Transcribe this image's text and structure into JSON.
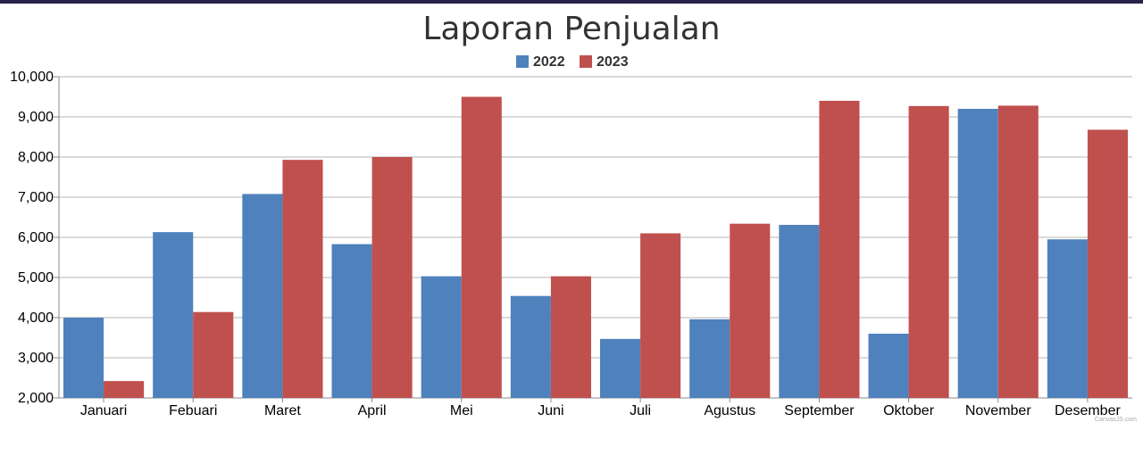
{
  "chart_data": {
    "type": "bar",
    "title": "Laporan Penjualan",
    "categories": [
      "Januari",
      "Febuari",
      "Maret",
      "April",
      "Mei",
      "Juni",
      "Juli",
      "Agustus",
      "September",
      "Oktober",
      "November",
      "Desember"
    ],
    "series": [
      {
        "name": "2022",
        "color": "#4f81bc",
        "values": [
          4000,
          6130,
          7080,
          5830,
          5030,
          4540,
          3470,
          3960,
          6310,
          3600,
          9200,
          5950
        ]
      },
      {
        "name": "2023",
        "color": "#c0504e",
        "values": [
          2420,
          4140,
          7930,
          8000,
          9500,
          5030,
          6100,
          6340,
          9400,
          9270,
          9280,
          8680
        ]
      }
    ],
    "ylim": [
      2000,
      10000
    ],
    "yticks": [
      2000,
      3000,
      4000,
      5000,
      6000,
      7000,
      8000,
      9000,
      10000
    ],
    "ytick_labels": [
      "2,000",
      "3,000",
      "4,000",
      "5,000",
      "6,000",
      "7,000",
      "8,000",
      "9,000",
      "10,000"
    ],
    "grid": true,
    "legend_position": "top-center",
    "xlabel": "",
    "ylabel": ""
  },
  "credit": "CanvasJS.com"
}
